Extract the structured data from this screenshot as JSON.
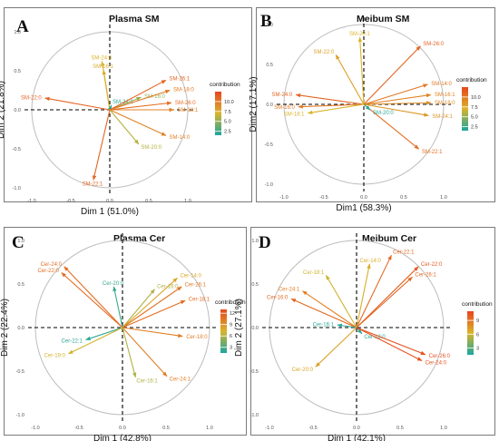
{
  "colors": {
    "border": "#7a7a7a",
    "circle": "#bdbdbd",
    "axis": "#000000",
    "tick": "#555555",
    "scale_low": "#1aa6a0",
    "scale_mid": "#d9b42a",
    "scale_high": "#e8461e"
  },
  "chart_data": [
    {
      "type": "scatter",
      "panel_letter": "A",
      "title": "Plasma SM",
      "xlabel": "Dim 1 (51.0%)",
      "ylabel": "Dim 2 (21.8%)",
      "xlim": [
        -1.0,
        1.0
      ],
      "ylim": [
        -1.0,
        1.0
      ],
      "xticks": [
        "-1.0",
        "-0.5",
        "0.0",
        "0.5",
        "1.0"
      ],
      "yticks": [
        "-1.0",
        "-0.5",
        "0.0",
        "0.5",
        "1.0"
      ],
      "legend": {
        "title": "contribution",
        "ticks": [
          2.5,
          5.0,
          7.5,
          10.0
        ],
        "labels": [
          "2.5",
          "5.0",
          "7.5",
          "10.0"
        ],
        "min": 1.5,
        "max": 12.5,
        "placement": "right"
      },
      "grid": false,
      "vectors": [
        {
          "label": "SM-24:0",
          "x": -0.1,
          "y": 0.62,
          "contribution": 7.0
        },
        {
          "label": "SM-16:1",
          "x": -0.08,
          "y": 0.51,
          "contribution": 7.5
        },
        {
          "label": "SM-22:0",
          "x": -0.83,
          "y": 0.15,
          "contribution": 11.0
        },
        {
          "label": "SM-24:1",
          "x": 0.02,
          "y": 0.06,
          "contribution": 2.0
        },
        {
          "label": "SM-16:0",
          "x": 0.4,
          "y": 0.16,
          "contribution": 5.0
        },
        {
          "label": "SM-26:1",
          "x": 0.72,
          "y": 0.38,
          "contribution": 11.0
        },
        {
          "label": "SM-18:0",
          "x": 0.77,
          "y": 0.25,
          "contribution": 10.0
        },
        {
          "label": "SM-26:0",
          "x": 0.79,
          "y": 0.09,
          "contribution": 10.5
        },
        {
          "label": "SM-18:1",
          "x": 0.82,
          "y": 0.0,
          "contribution": 9.5
        },
        {
          "label": "SM-14:0",
          "x": 0.72,
          "y": -0.33,
          "contribution": 9.5
        },
        {
          "label": "SM-20:0",
          "x": 0.37,
          "y": -0.44,
          "contribution": 6.0
        },
        {
          "label": "SM-22:1",
          "x": -0.21,
          "y": -0.9,
          "contribution": 11.0
        }
      ]
    },
    {
      "type": "scatter",
      "panel_letter": "B",
      "title": "Meibum SM",
      "xlabel": "Dim1 (58.3%)",
      "ylabel": "Dim2 (17.1%)",
      "xlim": [
        -1.0,
        1.0
      ],
      "ylim": [
        -1.0,
        1.0
      ],
      "xticks": [
        "-1.0",
        "-0.5",
        "0.0",
        "0.5",
        "1.0"
      ],
      "yticks": [
        "-1.0",
        "-0.5",
        "0.0",
        "0.5",
        "1.0"
      ],
      "legend": {
        "title": "contribution",
        "ticks": [
          2.5,
          5.0,
          7.5,
          10.0
        ],
        "labels": [
          "2.5",
          "5.0",
          "7.5",
          "10.0"
        ],
        "min": 1.5,
        "max": 12.5,
        "placement": "right"
      },
      "grid": false,
      "vectors": [
        {
          "label": "SM-26:0",
          "x": 0.71,
          "y": 0.73,
          "contribution": 11.0
        },
        {
          "label": "SM-22:0",
          "x": -0.35,
          "y": 0.62,
          "contribution": 8.0
        },
        {
          "label": "SM-20:1",
          "x": -0.05,
          "y": 0.84,
          "contribution": 7.0
        },
        {
          "label": "SM-14:0",
          "x": 0.8,
          "y": 0.25,
          "contribution": 10.0
        },
        {
          "label": "SM-16:1",
          "x": 0.84,
          "y": 0.12,
          "contribution": 9.5
        },
        {
          "label": "SM-18:0",
          "x": 0.84,
          "y": 0.02,
          "contribution": 9.0
        },
        {
          "label": "SM-24:1",
          "x": 0.81,
          "y": -0.14,
          "contribution": 8.5
        },
        {
          "label": "SM-22:1",
          "x": 0.69,
          "y": -0.56,
          "contribution": 10.5
        },
        {
          "label": "SM-20:0",
          "x": 0.08,
          "y": -0.07,
          "contribution": 2.0
        },
        {
          "label": "SM-24:0",
          "x": -0.85,
          "y": 0.12,
          "contribution": 11.0
        },
        {
          "label": "SM-16:0",
          "x": -0.82,
          "y": -0.03,
          "contribution": 10.0
        },
        {
          "label": "SM-18:1",
          "x": -0.7,
          "y": -0.11,
          "contribution": 7.0
        }
      ]
    },
    {
      "type": "scatter",
      "panel_letter": "C",
      "title": "Plasma Cer",
      "xlabel": "Dim 1 (42.8%)",
      "ylabel": "Dim 2 (22.4%)",
      "xlim": [
        -1.0,
        1.0
      ],
      "ylim": [
        -1.0,
        1.0
      ],
      "xticks": [
        "-1.0",
        "-0.5",
        "0.0",
        "0.5",
        "1.0"
      ],
      "yticks": [
        "-1.0",
        "-0.5",
        "0.0",
        "0.5",
        "1.0"
      ],
      "legend": {
        "title": "contribution",
        "ticks": [
          3,
          6,
          9,
          12
        ],
        "labels": [
          "3",
          "6",
          "9",
          "12"
        ],
        "min": 1.5,
        "max": 13,
        "placement": "right"
      },
      "grid": false,
      "vectors": [
        {
          "label": "Cer-24:0",
          "x": -0.67,
          "y": 0.7,
          "contribution": 11.0
        },
        {
          "label": "Cer-22:0",
          "x": -0.7,
          "y": 0.63,
          "contribution": 11.0
        },
        {
          "label": "Cer-20:0",
          "x": -0.1,
          "y": 0.47,
          "contribution": 2.5
        },
        {
          "label": "Cer-16:0",
          "x": 0.37,
          "y": 0.44,
          "contribution": 6.0
        },
        {
          "label": "Cer-14:0",
          "x": 0.63,
          "y": 0.57,
          "contribution": 8.0
        },
        {
          "label": "Cer-26:1",
          "x": 0.68,
          "y": 0.47,
          "contribution": 10.5
        },
        {
          "label": "Cer-18:1",
          "x": 0.72,
          "y": 0.31,
          "contribution": 11.0
        },
        {
          "label": "Cer-18:0",
          "x": 0.69,
          "y": -0.1,
          "contribution": 10.0
        },
        {
          "label": "Cer-24:1",
          "x": 0.51,
          "y": -0.56,
          "contribution": 10.0
        },
        {
          "label": "Cer-16:1",
          "x": 0.15,
          "y": -0.57,
          "contribution": 6.0
        },
        {
          "label": "Cer-22:1",
          "x": -0.42,
          "y": -0.14,
          "contribution": 2.0
        },
        {
          "label": "Cer-19:0",
          "x": -0.62,
          "y": -0.3,
          "contribution": 7.0
        }
      ]
    },
    {
      "type": "scatter",
      "panel_letter": "D",
      "title": "Meibum Cer",
      "xlabel": "Dim 1 (42.1%)",
      "ylabel": "Dim 2 (27.1%)",
      "xlim": [
        -1.0,
        1.0
      ],
      "ylim": [
        -1.0,
        1.0
      ],
      "xticks": [
        "-1.0",
        "-0.5",
        "0.0",
        "0.5",
        "1.0"
      ],
      "yticks": [
        "-1.0",
        "-0.5",
        "0.0",
        "0.5",
        "1.0"
      ],
      "legend": {
        "title": "contribution",
        "ticks": [
          3,
          6,
          9
        ],
        "labels": [
          "3",
          "6",
          "9"
        ],
        "min": 1.5,
        "max": 11,
        "placement": "right"
      },
      "grid": false,
      "vectors": [
        {
          "label": "Cer-22:1",
          "x": 0.4,
          "y": 0.83,
          "contribution": 9.5
        },
        {
          "label": "Cer-14:0",
          "x": 0.15,
          "y": 0.73,
          "contribution": 6.5
        },
        {
          "label": "Cer-22:0",
          "x": 0.71,
          "y": 0.7,
          "contribution": 10.0
        },
        {
          "label": "Cer-26:1",
          "x": 0.64,
          "y": 0.58,
          "contribution": 9.5
        },
        {
          "label": "Cer-18:1",
          "x": -0.35,
          "y": 0.6,
          "contribution": 6.0
        },
        {
          "label": "Cer-24:1",
          "x": -0.62,
          "y": 0.42,
          "contribution": 8.5
        },
        {
          "label": "Cer-16:0",
          "x": -0.75,
          "y": 0.33,
          "contribution": 9.5
        },
        {
          "label": "Cer-16:1",
          "x": -0.22,
          "y": 0.03,
          "contribution": 2.0
        },
        {
          "label": "Cer-18:0",
          "x": 0.06,
          "y": -0.07,
          "contribution": 2.0
        },
        {
          "label": "Cer-20:0",
          "x": -0.47,
          "y": -0.45,
          "contribution": 7.0
        },
        {
          "label": "Cer-26:0",
          "x": 0.79,
          "y": -0.31,
          "contribution": 10.5
        },
        {
          "label": "Cer-24:0",
          "x": 0.75,
          "y": -0.38,
          "contribution": 10.5
        }
      ]
    }
  ]
}
